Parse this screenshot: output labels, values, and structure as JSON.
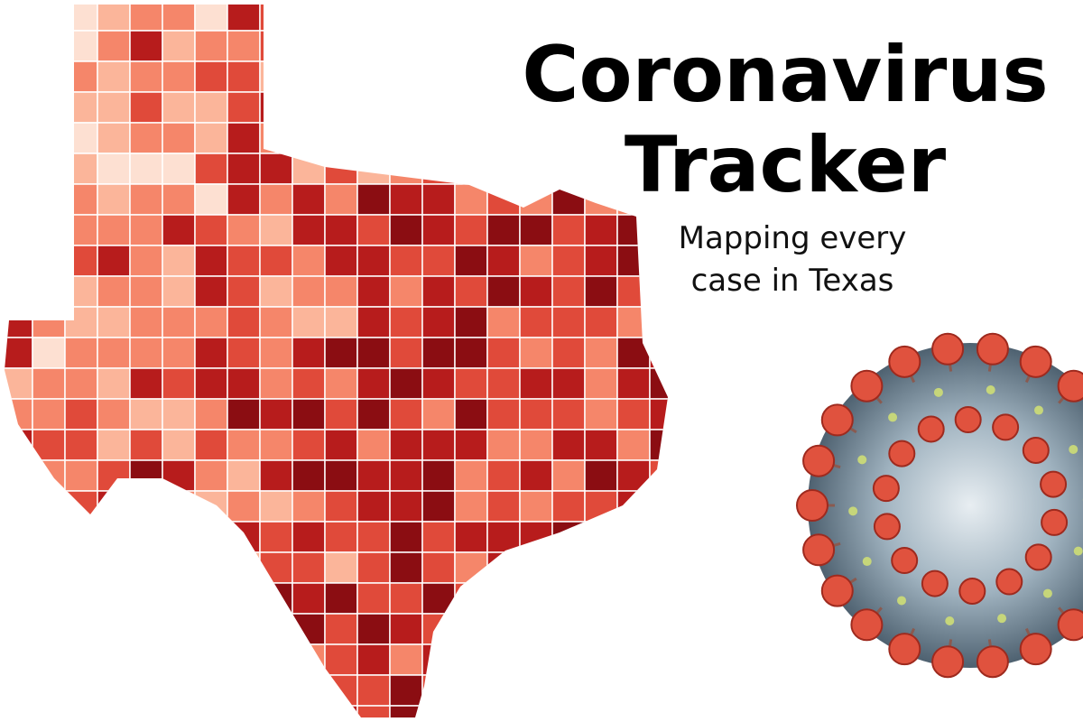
{
  "header": {
    "title_lines": [
      "Coronavirus",
      "Tracker"
    ],
    "subtitle_lines": [
      "Mapping every",
      "case in Texas"
    ]
  }
}
